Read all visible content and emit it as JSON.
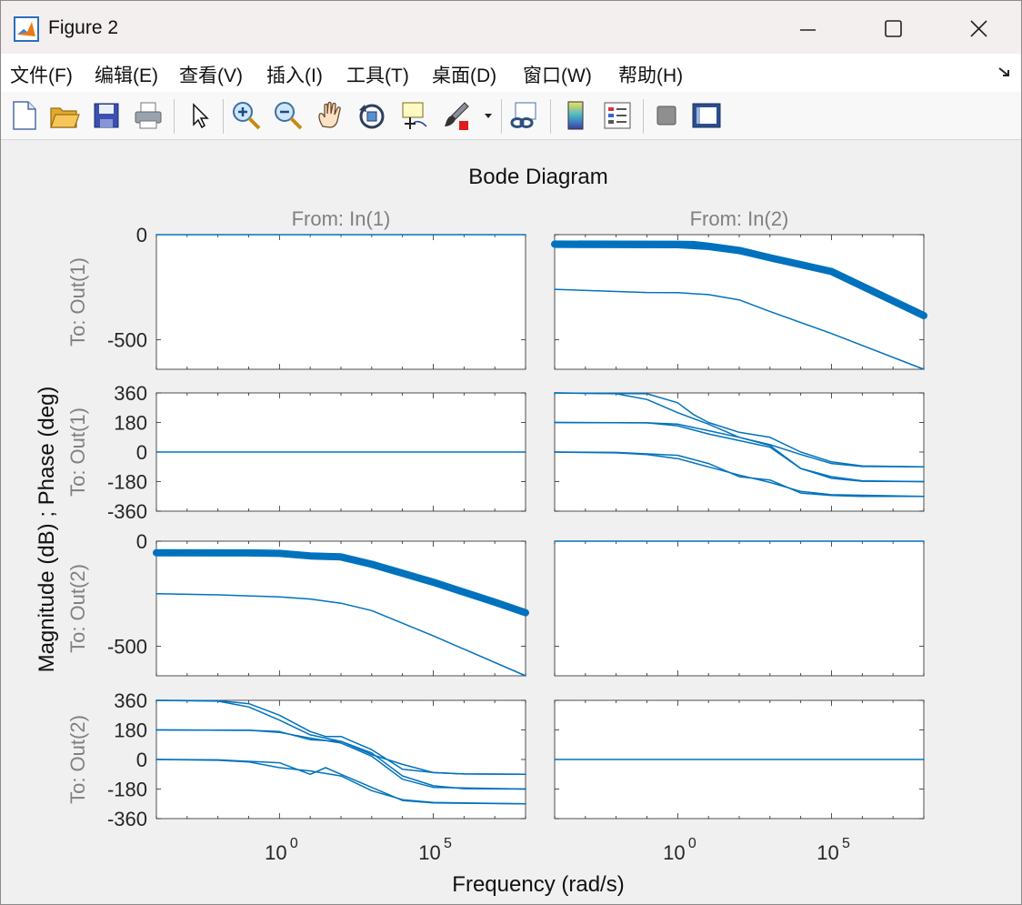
{
  "window": {
    "title": "Figure 2"
  },
  "menu": [
    "文件(F)",
    "编辑(E)",
    "查看(V)",
    "插入(I)",
    "工具(T)",
    "桌面(D)",
    "窗口(W)",
    "帮助(H)"
  ],
  "toolbar_icons": [
    "new-figure-icon",
    "open-file-icon",
    "save-icon",
    "print-icon",
    "pointer-icon",
    "zoom-in-icon",
    "zoom-out-icon",
    "pan-hand-icon",
    "rotate-3d-icon",
    "data-cursor-icon",
    "brush-icon",
    "brush-dropdown-icon",
    "link-plot-icon",
    "colorbar-icon",
    "legend-icon",
    "hide-plot-tools-icon",
    "show-plot-tools-icon"
  ],
  "colors": {
    "line": "#0072bd",
    "axes_bg": "#ffffff",
    "fig_bg": "#f0f0f0",
    "label": "#808080"
  },
  "chart_data": {
    "type": "line",
    "title": "Bode Diagram",
    "xlabel": "Frequency  (rad/s)",
    "ylabel": "Magnitude (dB) ; Phase (deg)",
    "xscale": "log",
    "xlim_log10": [
      -4,
      8
    ],
    "xtick_bases": [
      "10",
      "10"
    ],
    "xtick_exps": [
      "0",
      "5"
    ],
    "xticks_log10": [
      0,
      5
    ],
    "grid": false,
    "columns": [
      "From: In(1)",
      "From: In(2)"
    ],
    "rows": [
      {
        "label": "To: Out(1)",
        "kind": "magnitude",
        "ylim": [
          -640,
          0
        ],
        "yticks": [
          0,
          -500
        ]
      },
      {
        "label": "To: Out(1)",
        "kind": "phase",
        "ylim": [
          -360,
          360
        ],
        "yticks": [
          360,
          180,
          0,
          -180,
          -360
        ]
      },
      {
        "label": "To: Out(2)",
        "kind": "magnitude",
        "ylim": [
          -640,
          0
        ],
        "yticks": [
          0,
          -500
        ]
      },
      {
        "label": "To: Out(2)",
        "kind": "phase",
        "ylim": [
          -360,
          360
        ],
        "yticks": [
          360,
          180,
          0,
          -180,
          -360
        ]
      }
    ],
    "panels": [
      {
        "row": 0,
        "col": 0,
        "series": [
          {
            "width": 1.5,
            "points": [
              [
                -4,
                0
              ],
              [
                8,
                0
              ]
            ]
          }
        ]
      },
      {
        "row": 0,
        "col": 1,
        "series": [
          {
            "width": 8,
            "points": [
              [
                -4,
                -45
              ],
              [
                0,
                -46
              ],
              [
                0.5,
                -47
              ],
              [
                1,
                -55
              ],
              [
                2,
                -75
              ],
              [
                3,
                -110
              ],
              [
                5,
                -175
              ],
              [
                8,
                -385
              ]
            ]
          },
          {
            "width": 1.5,
            "points": [
              [
                -4,
                -60
              ],
              [
                0,
                -62
              ],
              [
                1,
                -70
              ],
              [
                2,
                -90
              ],
              [
                3,
                -120
              ],
              [
                5,
                -185
              ],
              [
                8,
                -400
              ]
            ]
          },
          {
            "width": 1.5,
            "points": [
              [
                -4,
                -260
              ],
              [
                -1,
                -275
              ],
              [
                0,
                -276
              ],
              [
                1,
                -285
              ],
              [
                2,
                -310
              ],
              [
                3,
                -365
              ],
              [
                5,
                -470
              ],
              [
                8,
                -640
              ]
            ]
          }
        ]
      },
      {
        "row": 1,
        "col": 0,
        "series": [
          {
            "width": 1.5,
            "points": [
              [
                -4,
                0
              ],
              [
                8,
                0
              ]
            ]
          }
        ]
      },
      {
        "row": 1,
        "col": 1,
        "series": [
          {
            "width": 1.5,
            "points": [
              [
                -4,
                360
              ],
              [
                -1,
                355
              ],
              [
                0,
                300
              ],
              [
                0.5,
                230
              ],
              [
                1,
                180
              ],
              [
                2,
                120
              ],
              [
                3,
                90
              ],
              [
                4,
                0
              ],
              [
                5,
                -60
              ],
              [
                6,
                -85
              ],
              [
                8,
                -90
              ]
            ]
          },
          {
            "width": 1.5,
            "points": [
              [
                -4,
                360
              ],
              [
                -2,
                355
              ],
              [
                -1,
                320
              ],
              [
                0,
                240
              ],
              [
                1,
                170
              ],
              [
                2,
                90
              ],
              [
                3,
                40
              ],
              [
                4,
                -100
              ],
              [
                5,
                -150
              ],
              [
                6,
                -175
              ],
              [
                8,
                -180
              ]
            ]
          },
          {
            "width": 1.5,
            "points": [
              [
                -4,
                180
              ],
              [
                -1,
                178
              ],
              [
                0,
                170
              ],
              [
                1,
                130
              ],
              [
                2,
                90
              ],
              [
                3,
                45
              ],
              [
                4,
                -15
              ],
              [
                5,
                -70
              ],
              [
                6,
                -88
              ],
              [
                8,
                -90
              ]
            ]
          },
          {
            "width": 1.5,
            "points": [
              [
                -4,
                180
              ],
              [
                -1,
                178
              ],
              [
                0,
                160
              ],
              [
                0.5,
                135
              ],
              [
                1,
                110
              ],
              [
                2,
                70
              ],
              [
                3,
                30
              ],
              [
                4,
                -100
              ],
              [
                5,
                -160
              ],
              [
                6,
                -178
              ],
              [
                8,
                -180
              ]
            ]
          },
          {
            "width": 1.5,
            "points": [
              [
                -4,
                0
              ],
              [
                -2,
                -2
              ],
              [
                0,
                -20
              ],
              [
                1,
                -70
              ],
              [
                2,
                -150
              ],
              [
                3,
                -170
              ],
              [
                4,
                -250
              ],
              [
                5,
                -265
              ],
              [
                6,
                -270
              ],
              [
                8,
                -270
              ]
            ]
          },
          {
            "width": 1.5,
            "points": [
              [
                -4,
                0
              ],
              [
                -2,
                -5
              ],
              [
                -1,
                -15
              ],
              [
                0,
                -40
              ],
              [
                1,
                -90
              ],
              [
                2,
                -140
              ],
              [
                3,
                -185
              ],
              [
                4,
                -240
              ],
              [
                5,
                -260
              ],
              [
                8,
                -270
              ]
            ]
          }
        ]
      },
      {
        "row": 2,
        "col": 0,
        "series": [
          {
            "width": 8,
            "points": [
              [
                -4,
                -55
              ],
              [
                -1,
                -56
              ],
              [
                0,
                -58
              ],
              [
                1,
                -70
              ],
              [
                2,
                -75
              ],
              [
                3,
                -110
              ],
              [
                5,
                -195
              ],
              [
                7,
                -290
              ],
              [
                8,
                -340
              ]
            ]
          },
          {
            "width": 1.5,
            "points": [
              [
                -4,
                -250
              ],
              [
                -2,
                -255
              ],
              [
                0,
                -265
              ],
              [
                1,
                -275
              ],
              [
                2,
                -295
              ],
              [
                3,
                -330
              ],
              [
                5,
                -450
              ],
              [
                8,
                -640
              ]
            ]
          }
        ]
      },
      {
        "row": 2,
        "col": 1,
        "series": [
          {
            "width": 1.5,
            "points": [
              [
                -4,
                0
              ],
              [
                8,
                0
              ]
            ]
          }
        ]
      },
      {
        "row": 3,
        "col": 0,
        "series": [
          {
            "width": 1.5,
            "points": [
              [
                -4,
                360
              ],
              [
                -2,
                358
              ],
              [
                -1,
                340
              ],
              [
                0,
                270
              ],
              [
                1,
                170
              ],
              [
                1.5,
                140
              ],
              [
                2,
                140
              ],
              [
                3,
                60
              ],
              [
                4,
                -60
              ],
              [
                5,
                -80
              ],
              [
                6,
                -88
              ],
              [
                8,
                -90
              ]
            ]
          },
          {
            "width": 1.5,
            "points": [
              [
                -4,
                360
              ],
              [
                -2,
                355
              ],
              [
                -1,
                320
              ],
              [
                0,
                240
              ],
              [
                1,
                150
              ],
              [
                2,
                110
              ],
              [
                3,
                40
              ],
              [
                4,
                -100
              ],
              [
                5,
                -160
              ],
              [
                6,
                -178
              ],
              [
                8,
                -180
              ]
            ]
          },
          {
            "width": 1.5,
            "points": [
              [
                -4,
                180
              ],
              [
                -1,
                178
              ],
              [
                0,
                170
              ],
              [
                1,
                120
              ],
              [
                2,
                110
              ],
              [
                3,
                30
              ],
              [
                4,
                -30
              ],
              [
                5,
                -80
              ],
              [
                6,
                -88
              ],
              [
                8,
                -90
              ]
            ]
          },
          {
            "width": 1.5,
            "points": [
              [
                -4,
                180
              ],
              [
                -1,
                178
              ],
              [
                0,
                165
              ],
              [
                1,
                130
              ],
              [
                2,
                100
              ],
              [
                3,
                20
              ],
              [
                4,
                -120
              ],
              [
                5,
                -170
              ],
              [
                8,
                -180
              ]
            ]
          },
          {
            "width": 1.5,
            "points": [
              [
                -4,
                0
              ],
              [
                -2,
                -2
              ],
              [
                0,
                -20
              ],
              [
                1,
                -90
              ],
              [
                1.5,
                -50
              ],
              [
                2,
                -90
              ],
              [
                3,
                -170
              ],
              [
                4,
                -250
              ],
              [
                5,
                -265
              ],
              [
                8,
                -270
              ]
            ]
          },
          {
            "width": 1.5,
            "points": [
              [
                -4,
                0
              ],
              [
                -2,
                -5
              ],
              [
                -1,
                -15
              ],
              [
                0,
                -50
              ],
              [
                1,
                -70
              ],
              [
                2,
                -100
              ],
              [
                3,
                -190
              ],
              [
                4,
                -245
              ],
              [
                5,
                -262
              ],
              [
                8,
                -270
              ]
            ]
          }
        ]
      },
      {
        "row": 3,
        "col": 1,
        "series": [
          {
            "width": 1.5,
            "points": [
              [
                -4,
                0
              ],
              [
                8,
                0
              ]
            ]
          }
        ]
      }
    ]
  }
}
